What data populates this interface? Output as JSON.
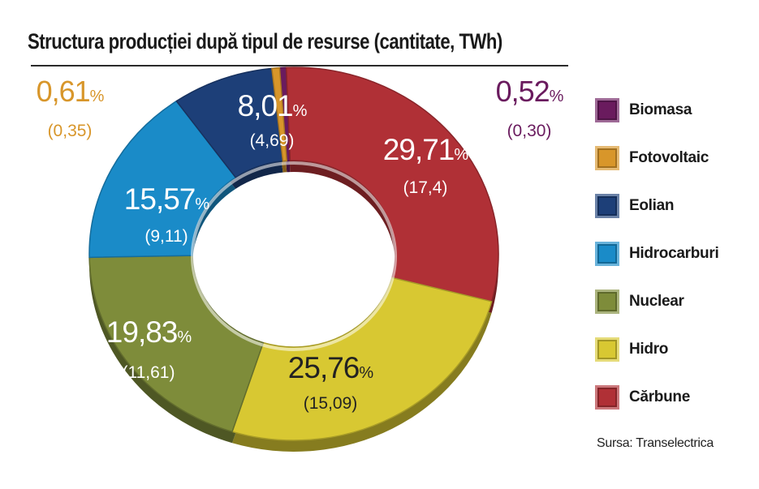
{
  "title": "Structura producției după tipul de resurse (cantitate, TWh)",
  "source": "Sursa: Transelectrica",
  "chart_data": {
    "type": "pie",
    "title": "Structura producției după tipul de resurse (cantitate, TWh)",
    "unit": "TWh",
    "slices": [
      {
        "name": "Biomasa",
        "percent": 0.52,
        "value": 0.3,
        "percent_label": "0,52",
        "value_label": "(0,30)",
        "color": "#6a1b5e"
      },
      {
        "name": "Cărbune",
        "percent": 29.71,
        "value": 17.4,
        "percent_label": "29,71",
        "value_label": "(17,4)",
        "color": "#b03036"
      },
      {
        "name": "Hidro",
        "percent": 25.76,
        "value": 15.09,
        "percent_label": "25,76",
        "value_label": "(15,09)",
        "color": "#d8c832"
      },
      {
        "name": "Nuclear",
        "percent": 19.83,
        "value": 11.61,
        "percent_label": "19,83",
        "value_label": "(11,61)",
        "color": "#7e8c3a"
      },
      {
        "name": "Hidrocarburi",
        "percent": 15.57,
        "value": 9.11,
        "percent_label": "15,57",
        "value_label": "(9,11)",
        "color": "#1a8bc8"
      },
      {
        "name": "Eolian",
        "percent": 8.01,
        "value": 4.69,
        "percent_label": "8,01",
        "value_label": "(4,69)",
        "color": "#1d3f78"
      },
      {
        "name": "Fotovoltaic",
        "percent": 0.61,
        "value": 0.35,
        "percent_label": "0,61",
        "value_label": "(0,35)",
        "color": "#d8962a"
      }
    ],
    "legend": [
      "Biomasa",
      "Fotovoltaic",
      "Eolian",
      "Hidrocarburi",
      "Nuclear",
      "Hidro",
      "Cărbune"
    ],
    "legend_placement": "right",
    "percent_sign": "%"
  },
  "legend": {
    "items": [
      {
        "label": "Biomasa",
        "color": "#6a1b5e"
      },
      {
        "label": "Fotovoltaic",
        "color": "#d8962a"
      },
      {
        "label": "Eolian",
        "color": "#1d3f78"
      },
      {
        "label": "Hidrocarburi",
        "color": "#1a8bc8"
      },
      {
        "label": "Nuclear",
        "color": "#7e8c3a"
      },
      {
        "label": "Hidro",
        "color": "#d8c832"
      },
      {
        "label": "Cărbune",
        "color": "#b03036"
      }
    ]
  }
}
